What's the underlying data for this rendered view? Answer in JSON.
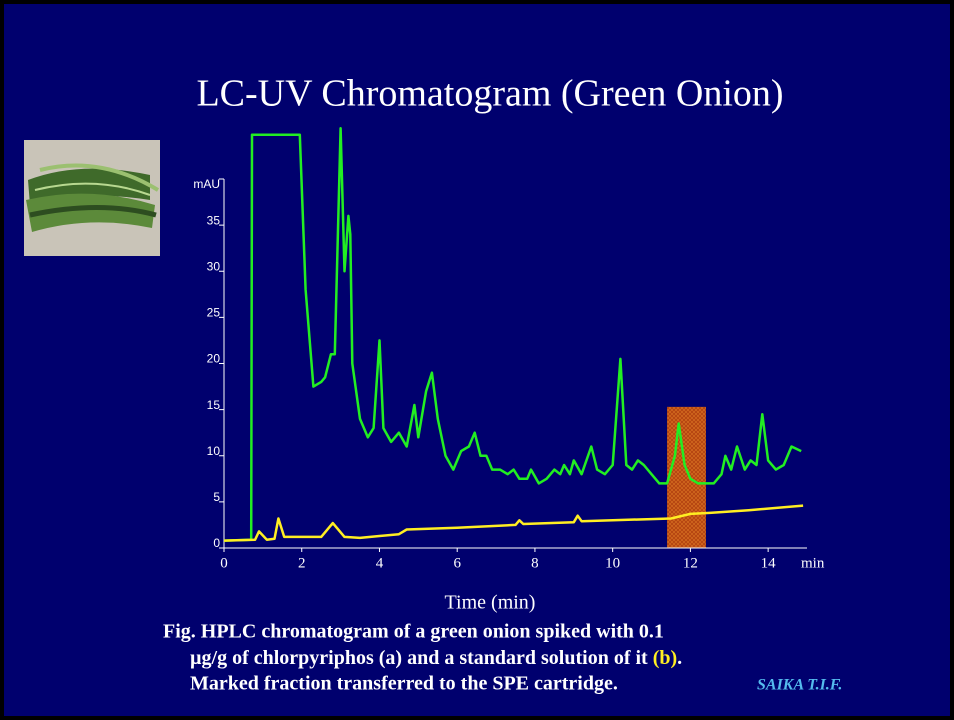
{
  "chart_data": {
    "type": "line",
    "title": "LC-UV Chromatogram (Green Onion)",
    "xlabel": "Time (min)",
    "xunit": "min",
    "ylabel": "mAU",
    "xlim": [
      0,
      15
    ],
    "ylim": [
      0,
      40
    ],
    "xticks": [
      0,
      2,
      4,
      6,
      8,
      10,
      12,
      14
    ],
    "yticks": [
      0,
      5,
      10,
      15,
      20,
      25,
      30,
      35
    ],
    "marked_fraction": {
      "color": "#d2691e",
      "xrange": [
        11.4,
        12.4
      ],
      "top": 15.3
    },
    "series": [
      {
        "color": "#22ee22",
        "x": [
          0,
          0.7,
          0.72,
          1.95,
          2.1,
          2.3,
          2.5,
          2.6,
          2.75,
          2.85,
          3.0,
          3.1,
          3.2,
          3.25,
          3.3,
          3.5,
          3.7,
          3.85,
          4.0,
          4.1,
          4.3,
          4.5,
          4.7,
          4.9,
          5.0,
          5.2,
          5.35,
          5.5,
          5.7,
          5.9,
          6.1,
          6.3,
          6.45,
          6.6,
          6.75,
          6.9,
          7.1,
          7.3,
          7.45,
          7.6,
          7.8,
          7.9,
          8.1,
          8.3,
          8.5,
          8.65,
          8.75,
          8.9,
          9.0,
          9.2,
          9.45,
          9.6,
          9.8,
          10.0,
          10.2,
          10.35,
          10.5,
          10.65,
          10.8,
          11.0,
          11.2,
          11.4,
          11.6,
          11.7,
          11.85,
          12.0,
          12.2,
          12.4,
          12.6,
          12.8,
          12.9,
          13.05,
          13.2,
          13.4,
          13.55,
          13.7,
          13.85,
          14.0,
          14.2,
          14.4,
          14.6,
          14.85
        ],
        "values": [
          0.8,
          0.9,
          44.8,
          44.8,
          28,
          17.5,
          18,
          18.5,
          21,
          21,
          45.5,
          30,
          36,
          34,
          20,
          14,
          12,
          13,
          22.5,
          13,
          11.5,
          12.5,
          11,
          15.5,
          12,
          17,
          19,
          14,
          10,
          8.5,
          10.5,
          11,
          12.5,
          10,
          10,
          8.5,
          8.5,
          8,
          8.5,
          7.5,
          7.5,
          8.5,
          7,
          7.5,
          8.5,
          8,
          9,
          8,
          9.5,
          8,
          11,
          8.5,
          8,
          9,
          20.5,
          9,
          8.5,
          9.5,
          9,
          8,
          7,
          7,
          10,
          13.5,
          9,
          7.5,
          7,
          7,
          7,
          8,
          10,
          8.5,
          11,
          8.5,
          9.5,
          9,
          14.5,
          9.5,
          8.5,
          9,
          11,
          10.5
        ]
      },
      {
        "color": "#ffee22",
        "x": [
          0,
          0.8,
          0.9,
          1.1,
          1.3,
          1.4,
          1.55,
          2.5,
          2.8,
          3.1,
          3.5,
          4.0,
          4.5,
          4.7,
          6.0,
          7.5,
          7.6,
          7.7,
          9.0,
          9.1,
          9.2,
          11.5,
          12.0,
          12.5,
          13.5,
          14.9
        ],
        "values": [
          0.8,
          0.9,
          1.8,
          0.9,
          1.0,
          3.2,
          1.2,
          1.2,
          2.7,
          1.2,
          1.1,
          1.3,
          1.5,
          2.0,
          2.2,
          2.5,
          3.0,
          2.6,
          2.8,
          3.5,
          2.9,
          3.2,
          3.7,
          3.8,
          4.1,
          4.6
        ]
      }
    ]
  },
  "caption": {
    "line1": "Fig.  HPLC chromatogram of a green onion spiked with 0.1",
    "line2": "µg/g of chlorpyriphos (a) and  a standard solution of it ",
    "b": "(b)",
    "period": ".",
    "line3": "Marked fraction transferred to the SPE cartridge.",
    "credit": "SAIKA  T.I.F."
  }
}
